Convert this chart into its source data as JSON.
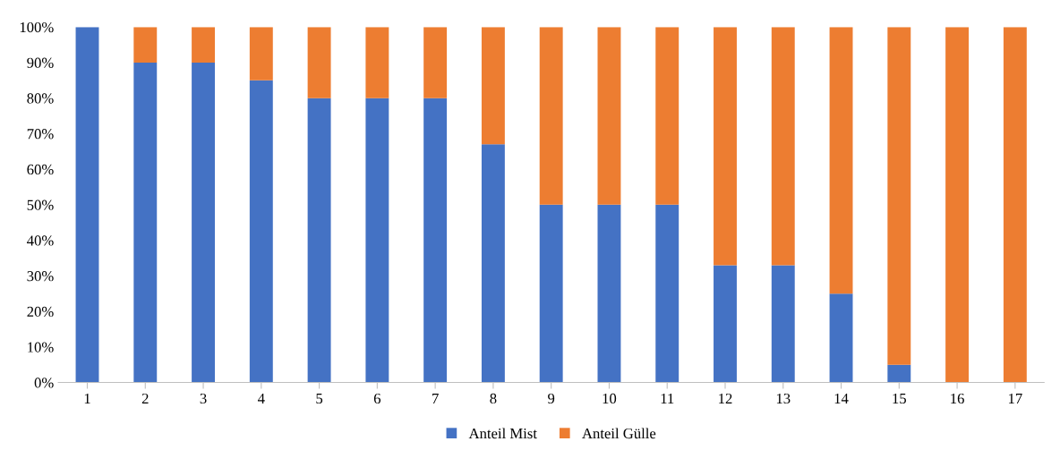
{
  "chart_data": {
    "type": "bar",
    "stacked": true,
    "categories": [
      "1",
      "2",
      "3",
      "4",
      "5",
      "6",
      "7",
      "8",
      "9",
      "10",
      "11",
      "12",
      "13",
      "14",
      "15",
      "16",
      "17"
    ],
    "series": [
      {
        "name": "Anteil Mist",
        "color": "#4472c4",
        "values": [
          100,
          90,
          90,
          85,
          80,
          80,
          80,
          67,
          50,
          50,
          50,
          33,
          33,
          25,
          5,
          0,
          0
        ]
      },
      {
        "name": "Anteil Gülle",
        "color": "#ed7d31",
        "values": [
          0,
          10,
          10,
          15,
          20,
          20,
          20,
          33,
          50,
          50,
          50,
          67,
          67,
          75,
          95,
          100,
          100
        ]
      }
    ],
    "ylim": [
      0,
      100
    ],
    "yticks": [
      {
        "value": 0,
        "label": "0%"
      },
      {
        "value": 10,
        "label": "10%"
      },
      {
        "value": 20,
        "label": "20%"
      },
      {
        "value": 30,
        "label": "30%"
      },
      {
        "value": 40,
        "label": "40%"
      },
      {
        "value": 50,
        "label": "50%"
      },
      {
        "value": 60,
        "label": "60%"
      },
      {
        "value": 70,
        "label": "70%"
      },
      {
        "value": 80,
        "label": "80%"
      },
      {
        "value": 90,
        "label": "90%"
      },
      {
        "value": 100,
        "label": "100%"
      }
    ],
    "grid": false,
    "legend": "bottom"
  }
}
